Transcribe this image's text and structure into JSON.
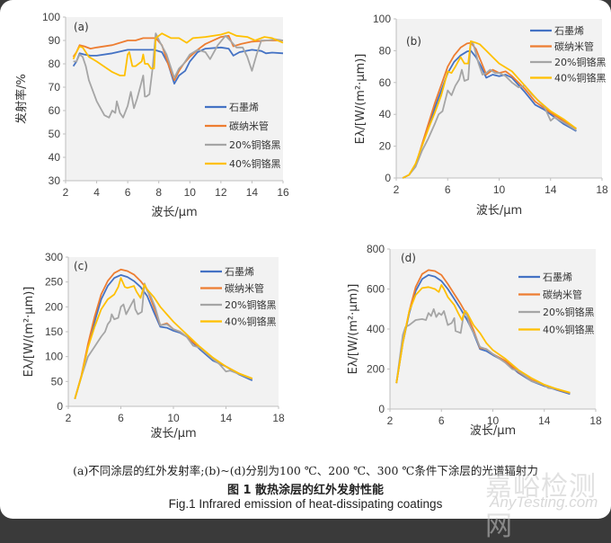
{
  "captions": {
    "subtitle": "(a)不同涂层的红外发射率;(b)~(d)分别为100 ℃、200 ℃、300 ℃条件下涂层的光谱辐射力",
    "title_cn": "图 1 散热涂层的红外发射性能",
    "title_en": "Fig.1 Infrared emission of heat-dissipating coatings"
  },
  "watermark": {
    "cn": "嘉峪检测网",
    "en": "AnyTesting.com"
  },
  "colors": {
    "石墨烯": "#4472c4",
    "碳纳米管": "#ed7d31",
    "20%铜铬黑": "#a5a5a5",
    "40%铜铬黑": "#ffc000",
    "plot_bg": "#f2f2f2"
  },
  "chart_data": [
    {
      "panel_label": "(a)",
      "type": "line",
      "xlabel": "波长/μm",
      "ylabel": "发射率/%",
      "xlim": [
        2,
        16
      ],
      "ylim": [
        30,
        100
      ],
      "xticks": [
        2,
        4,
        6,
        8,
        10,
        12,
        14,
        16
      ],
      "yticks": [
        30,
        40,
        50,
        60,
        70,
        80,
        90,
        100
      ],
      "legend": "bottom-right",
      "grid": false,
      "series": [
        {
          "name": "石墨烯",
          "x": [
            2.5,
            2.7,
            2.9,
            3.2,
            3.6,
            4,
            5,
            6,
            7,
            7.7,
            8.2,
            8.6,
            9,
            9.3,
            9.7,
            10,
            10.5,
            11,
            12,
            12.5,
            12.8,
            13.2,
            14,
            14.6,
            14.9,
            15.3,
            16
          ],
          "y": [
            79,
            81,
            84.5,
            84,
            83.5,
            83.5,
            84.5,
            86,
            86,
            86,
            85,
            80,
            71.5,
            75,
            77,
            81,
            85,
            86.5,
            87,
            86.5,
            83.5,
            85,
            86,
            85.5,
            84.5,
            84.8,
            84.5
          ]
        },
        {
          "name": "碳纳米管",
          "x": [
            2.5,
            2.7,
            2.9,
            3.2,
            3.6,
            4,
            5,
            6,
            6.5,
            7,
            7.8,
            8.2,
            8.6,
            9,
            9.3,
            9.6,
            10,
            10.5,
            11,
            12,
            12.5,
            12.8,
            13.3,
            14,
            15,
            16
          ],
          "y": [
            83,
            85,
            88,
            87.5,
            86.5,
            87,
            88,
            90,
            90,
            91,
            91,
            88,
            80,
            73,
            77,
            80,
            83,
            86,
            88.5,
            91.5,
            92,
            87.5,
            88.5,
            89.5,
            90,
            90
          ]
        },
        {
          "name": "20%铜铬黑",
          "x": [
            2.5,
            2.7,
            2.9,
            3.1,
            3.3,
            3.5,
            4,
            4.5,
            4.8,
            5,
            5.2,
            5.3,
            5.5,
            5.7,
            6,
            6.2,
            6.4,
            6.6,
            6.8,
            7,
            7.1,
            7.2,
            7.4,
            7.6,
            7.8,
            8.1,
            8.5,
            9,
            9.3,
            9.6,
            10,
            10.5,
            11,
            11.3,
            11.8,
            12.3,
            12.6,
            13,
            13.4,
            13.7,
            14,
            14.3,
            14.6,
            15,
            15.5,
            16
          ],
          "y": [
            81,
            81,
            84,
            83,
            79,
            73,
            64,
            58,
            57,
            60,
            59,
            64,
            59,
            57,
            62,
            68,
            61,
            65,
            70,
            75,
            66,
            66,
            67,
            78,
            93,
            89,
            84,
            74,
            78,
            80,
            84,
            86,
            85,
            82,
            88,
            92,
            90,
            87,
            87,
            83,
            77,
            84,
            90,
            90,
            90.5,
            90
          ]
        },
        {
          "name": "40%铜铬黑",
          "x": [
            2.5,
            2.7,
            2.9,
            3.1,
            3.5,
            4,
            5,
            5.5,
            5.8,
            6,
            6.1,
            6.3,
            6.5,
            6.9,
            7,
            7.1,
            7.3,
            7.5,
            7.7,
            7.8,
            8.2,
            8.8,
            9.3,
            9.8,
            10.2,
            11,
            12,
            12.5,
            13,
            13.7,
            14.2,
            14.8,
            15.3,
            16
          ],
          "y": [
            82,
            85,
            87.5,
            87,
            83,
            81,
            76.5,
            75,
            75,
            84,
            85,
            79,
            79,
            81,
            84,
            80,
            80,
            78,
            78,
            91,
            93,
            91,
            91,
            89,
            91,
            91.5,
            92.5,
            93.5,
            92,
            91.5,
            90,
            91.5,
            91,
            89
          ]
        }
      ]
    },
    {
      "panel_label": "(b)",
      "type": "line",
      "xlabel": "波长/μm",
      "ylabel": "Eλ/[W/(m²·μm)]",
      "xlim": [
        2,
        18
      ],
      "ylim": [
        0,
        100
      ],
      "xticks": [
        2,
        6,
        10,
        14,
        18
      ],
      "yticks": [
        0,
        20,
        40,
        60,
        80,
        100
      ],
      "legend": "top-right",
      "grid": false,
      "series": [
        {
          "name": "石墨烯",
          "x": [
            2.5,
            3,
            3.5,
            4,
            5,
            6,
            6.5,
            7,
            7.5,
            7.8,
            8.2,
            8.6,
            9,
            9.5,
            10,
            10.5,
            11,
            12,
            12.8,
            13.5,
            14,
            15,
            16
          ],
          "y": [
            0,
            2,
            8,
            20,
            44,
            66,
            73,
            77,
            79.5,
            80,
            76,
            70,
            63,
            65,
            64,
            65,
            63,
            54,
            46,
            43,
            40,
            34,
            29.5
          ]
        },
        {
          "name": "碳纳米管",
          "x": [
            2.5,
            3,
            3.5,
            4,
            5,
            6,
            6.5,
            7,
            7.5,
            7.8,
            8.2,
            8.6,
            9,
            9.5,
            10,
            10.5,
            11,
            12,
            12.8,
            13.5,
            14,
            15,
            16
          ],
          "y": [
            0,
            2,
            8,
            21,
            47,
            70,
            77,
            82,
            84.5,
            85,
            81,
            73,
            65,
            68,
            66,
            67,
            64,
            56,
            48,
            44,
            41,
            36,
            31
          ]
        },
        {
          "name": "20%铜铬黑",
          "x": [
            2.5,
            3,
            3.5,
            4,
            4.5,
            5,
            5.3,
            5.6,
            6,
            6.3,
            6.6,
            6.9,
            7.1,
            7.3,
            7.6,
            7.8,
            8,
            8.4,
            8.7,
            9,
            9.3,
            9.7,
            10,
            10.5,
            11,
            11.5,
            12,
            12.5,
            13,
            13.5,
            14,
            14.3,
            15,
            16
          ],
          "y": [
            0,
            2,
            7,
            17,
            25,
            34,
            40,
            42,
            55,
            52,
            58,
            62,
            68,
            61,
            62,
            86,
            84,
            72,
            65,
            66,
            68,
            66,
            66,
            64,
            60,
            57,
            58,
            53,
            49,
            45,
            36,
            38,
            35,
            30
          ]
        },
        {
          "name": "40%铜铬黑",
          "x": [
            2.5,
            3,
            3.5,
            4,
            4.5,
            5,
            5.5,
            6,
            6.3,
            6.6,
            7,
            7.3,
            7.6,
            7.8,
            8.2,
            8.5,
            9,
            9.5,
            10,
            11,
            12,
            13,
            14,
            15,
            16
          ],
          "y": [
            0,
            2,
            9,
            20,
            31,
            41,
            52,
            67,
            66,
            70,
            76,
            72,
            72,
            86,
            85,
            84,
            80,
            76,
            72,
            67,
            58,
            49,
            42,
            37,
            31
          ]
        }
      ]
    },
    {
      "panel_label": "(c)",
      "type": "line",
      "xlabel": "波长/μm",
      "ylabel": "Eλ/[W/(m²·μm)]",
      "xlim": [
        2,
        18
      ],
      "ylim": [
        0,
        300
      ],
      "xticks": [
        2,
        6,
        10,
        14,
        18
      ],
      "yticks": [
        0,
        50,
        100,
        150,
        200,
        250,
        300
      ],
      "legend": "top-right",
      "grid": false,
      "series": [
        {
          "name": "石墨烯",
          "x": [
            2.5,
            3,
            3.5,
            4,
            4.5,
            5,
            5.5,
            6,
            6.5,
            7,
            7.5,
            8,
            8.5,
            9,
            9.5,
            10,
            10.5,
            11,
            12,
            13,
            14,
            15,
            16
          ],
          "y": [
            15,
            60,
            120,
            170,
            215,
            242,
            258,
            264,
            260,
            252,
            240,
            222,
            190,
            160,
            158,
            152,
            148,
            140,
            115,
            92,
            80,
            64,
            52
          ]
        },
        {
          "name": "碳纳米管",
          "x": [
            2.5,
            3,
            3.5,
            4,
            4.5,
            5,
            5.5,
            6,
            6.5,
            7,
            7.5,
            8,
            8.5,
            9,
            9.5,
            10,
            10.5,
            11,
            12,
            13,
            14,
            15,
            16
          ],
          "y": [
            15,
            62,
            125,
            180,
            225,
            252,
            268,
            275,
            272,
            265,
            252,
            235,
            200,
            163,
            167,
            155,
            150,
            140,
            118,
            96,
            80,
            66,
            55
          ]
        },
        {
          "name": "20%铜铬黑",
          "x": [
            2.5,
            3,
            3.5,
            4,
            4.5,
            4.8,
            5,
            5.2,
            5.3,
            5.5,
            5.8,
            6,
            6.2,
            6.4,
            6.7,
            7,
            7.1,
            7.3,
            7.6,
            7.8,
            8,
            8.3,
            8.6,
            9,
            9.5,
            10,
            10.5,
            11,
            11.5,
            12,
            13,
            13.5,
            14,
            14.3,
            15,
            16
          ],
          "y": [
            15,
            60,
            100,
            120,
            140,
            150,
            165,
            172,
            185,
            175,
            178,
            200,
            205,
            185,
            200,
            215,
            195,
            185,
            190,
            247,
            232,
            220,
            200,
            163,
            165,
            155,
            150,
            140,
            122,
            118,
            95,
            85,
            70,
            72,
            65,
            55
          ]
        },
        {
          "name": "40%铜铬黑",
          "x": [
            2.5,
            3,
            3.5,
            4,
            4.5,
            5,
            5.5,
            5.8,
            6,
            6.3,
            6.5,
            7,
            7.2,
            7.5,
            7.8,
            8,
            8.5,
            9,
            9.5,
            10,
            11,
            12,
            13,
            14,
            15,
            16
          ],
          "y": [
            15,
            60,
            118,
            160,
            195,
            215,
            225,
            240,
            258,
            240,
            238,
            242,
            230,
            218,
            245,
            235,
            220,
            200,
            185,
            170,
            145,
            120,
            98,
            80,
            66,
            56
          ]
        }
      ]
    },
    {
      "panel_label": "(d)",
      "type": "line",
      "xlabel": "波长/μm",
      "ylabel": "Eλ/[W/(m²·μm)]",
      "xlim": [
        2,
        18
      ],
      "ylim": [
        0,
        800
      ],
      "xticks": [
        2,
        6,
        10,
        14,
        18
      ],
      "yticks": [
        0,
        200,
        400,
        600,
        800
      ],
      "legend": "top-right",
      "grid": false,
      "series": [
        {
          "name": "石墨烯",
          "x": [
            2.5,
            3,
            3.5,
            4,
            4.5,
            5,
            5.5,
            6,
            6.5,
            7,
            7.5,
            8,
            8.5,
            9,
            9.5,
            10,
            11,
            12,
            13,
            14,
            15,
            16
          ],
          "y": [
            130,
            330,
            480,
            590,
            650,
            670,
            662,
            640,
            600,
            550,
            500,
            445,
            380,
            300,
            290,
            270,
            235,
            180,
            140,
            115,
            95,
            75
          ]
        },
        {
          "name": "碳纳米管",
          "x": [
            2.5,
            3,
            3.5,
            4,
            4.5,
            5,
            5.5,
            6,
            6.5,
            7,
            7.5,
            8,
            8.5,
            9,
            9.5,
            10,
            11,
            12,
            13,
            14,
            15,
            16
          ],
          "y": [
            130,
            335,
            490,
            610,
            675,
            695,
            690,
            670,
            625,
            575,
            525,
            468,
            395,
            305,
            300,
            275,
            240,
            185,
            145,
            118,
            98,
            80
          ]
        },
        {
          "name": "20%铜铬黑",
          "x": [
            2.5,
            3,
            3.2,
            3.5,
            4,
            4.5,
            4.8,
            5,
            5.2,
            5.4,
            5.6,
            5.8,
            6,
            6.2,
            6.5,
            6.8,
            7,
            7.1,
            7.3,
            7.5,
            7.7,
            7.9,
            8.2,
            8.6,
            9,
            9.5,
            10,
            11,
            11.5,
            12,
            13,
            14,
            14.3,
            15,
            16
          ],
          "y": [
            130,
            370,
            410,
            420,
            445,
            450,
            445,
            480,
            465,
            500,
            460,
            480,
            470,
            490,
            420,
            430,
            455,
            390,
            385,
            380,
            460,
            490,
            420,
            370,
            310,
            300,
            275,
            230,
            200,
            190,
            140,
            120,
            105,
            100,
            80
          ]
        },
        {
          "name": "40%铜铬黑",
          "x": [
            2.5,
            3,
            3.5,
            4,
            4.5,
            5,
            5.5,
            5.8,
            6,
            6.2,
            6.5,
            7,
            7.3,
            7.6,
            7.8,
            8,
            8.5,
            9,
            9.5,
            10,
            11,
            12,
            13,
            14,
            15,
            16
          ],
          "y": [
            130,
            330,
            490,
            570,
            605,
            610,
            600,
            585,
            620,
            600,
            560,
            520,
            480,
            445,
            490,
            480,
            420,
            380,
            330,
            295,
            250,
            195,
            155,
            122,
            100,
            82
          ]
        }
      ]
    }
  ],
  "plots": [
    {
      "panel_label": "(a)",
      "ylabel_cn": "发射率/%",
      "xlabel": "波长/μm",
      "legend_names": [
        "石墨烯",
        "碳纳米管",
        "20%铜铬黑",
        "40%铜铬黑"
      ]
    },
    {
      "panel_label": "(b)",
      "ylabel": "Eλ/[W/(m²·μm)]",
      "xlabel": "波长/μm",
      "legend_names": [
        "石墨烯",
        "碳纳米管",
        "20%铜铬黑",
        "40%铜铬黑"
      ]
    },
    {
      "panel_label": "(c)",
      "ylabel": "Eλ/[W/(m²·μm)]",
      "xlabel": "波长/μm",
      "legend_names": [
        "石墨烯",
        "碳纳米管",
        "20%铜铬黑",
        "40%铜铬黑"
      ]
    },
    {
      "panel_label": "(d)",
      "ylabel": "Eλ/[W/(m²·μm)]",
      "xlabel": "波长/μm",
      "legend_names": [
        "石墨烯",
        "碳纳米管",
        "20%铜铬黑",
        "40%铜铬黑"
      ]
    }
  ]
}
